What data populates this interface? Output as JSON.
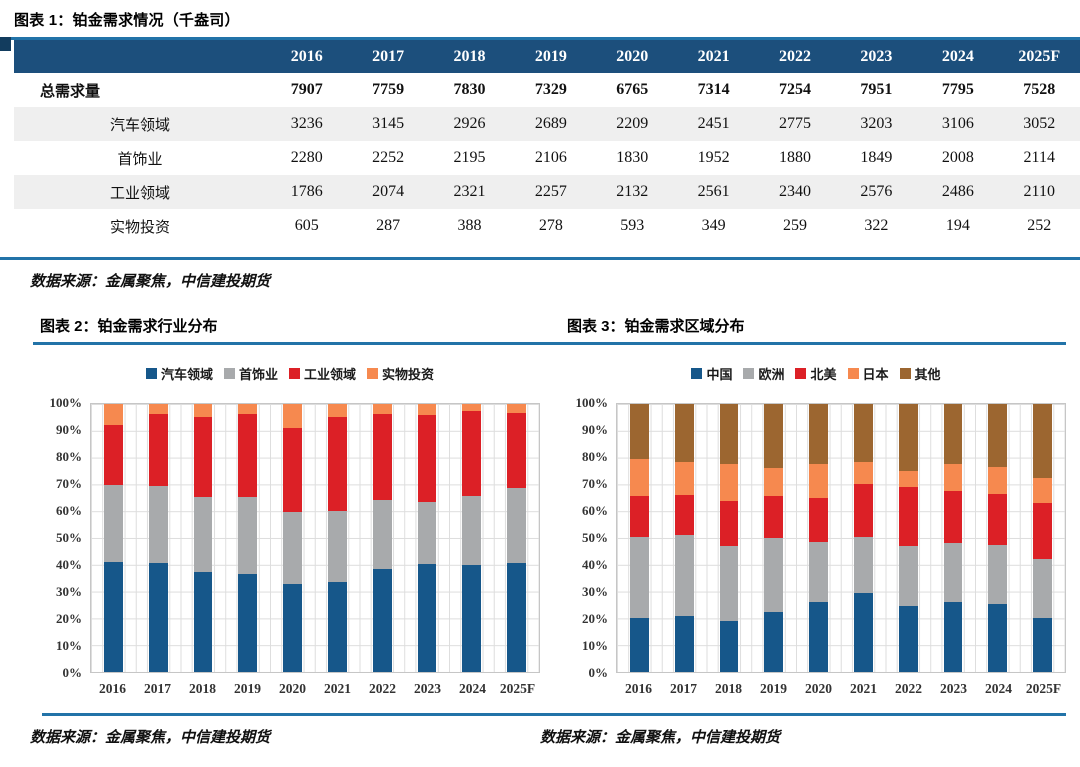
{
  "figure1": {
    "title": "图表 1：铂金需求情况（千盎司）",
    "source": "数据来源：金属聚焦，中信建投期货",
    "columns": [
      "2016",
      "2017",
      "2018",
      "2019",
      "2020",
      "2021",
      "2022",
      "2023",
      "2024",
      "2025F"
    ],
    "rows": [
      {
        "label": "总需求量",
        "bold": true,
        "shaded": false,
        "values": [
          7907,
          7759,
          7830,
          7329,
          6765,
          7314,
          7254,
          7951,
          7795,
          7528
        ]
      },
      {
        "label": "汽车领域",
        "bold": false,
        "shaded": true,
        "values": [
          3236,
          3145,
          2926,
          2689,
          2209,
          2451,
          2775,
          3203,
          3106,
          3052
        ]
      },
      {
        "label": "首饰业",
        "bold": false,
        "shaded": false,
        "values": [
          2280,
          2252,
          2195,
          2106,
          1830,
          1952,
          1880,
          1849,
          2008,
          2114
        ]
      },
      {
        "label": "工业领域",
        "bold": false,
        "shaded": true,
        "values": [
          1786,
          2074,
          2321,
          2257,
          2132,
          2561,
          2340,
          2576,
          2486,
          2110
        ]
      },
      {
        "label": "实物投资",
        "bold": false,
        "shaded": false,
        "values": [
          605,
          287,
          388,
          278,
          593,
          349,
          259,
          322,
          194,
          252
        ]
      }
    ]
  },
  "figure2": {
    "title": "图表 2：铂金需求行业分布",
    "source": "数据来源：金属聚焦，中信建投期货"
  },
  "figure3": {
    "title": "图表 3：铂金需求区域分布",
    "source": "数据来源：金属聚焦，中信建投期货"
  },
  "colors": {
    "table_header": "#1C4F7C",
    "rule_blue": "#2273A8",
    "zebra_row": "#EFEFEF",
    "blue": "#16578A",
    "gray": "#A8AAAC",
    "red": "#DC2026",
    "orange": "#F6894F",
    "brown": "#9C6630"
  },
  "chart_data": [
    {
      "type": "bar",
      "stacked": "100%",
      "title": "图表 2：铂金需求行业分布",
      "categories": [
        "2016",
        "2017",
        "2018",
        "2019",
        "2020",
        "2021",
        "2022",
        "2023",
        "2024",
        "2025F"
      ],
      "series": [
        {
          "name": "汽车领域",
          "color": "#16578A",
          "values": [
            3236,
            3145,
            2926,
            2689,
            2209,
            2451,
            2775,
            3203,
            3106,
            3052
          ]
        },
        {
          "name": "首饰业",
          "color": "#A8AAAC",
          "values": [
            2280,
            2252,
            2195,
            2106,
            1830,
            1952,
            1880,
            1849,
            2008,
            2114
          ]
        },
        {
          "name": "工业领域",
          "color": "#DC2026",
          "values": [
            1786,
            2074,
            2321,
            2257,
            2132,
            2561,
            2340,
            2576,
            2486,
            2110
          ]
        },
        {
          "name": "实物投资",
          "color": "#F6894F",
          "values": [
            605,
            287,
            388,
            278,
            593,
            349,
            259,
            322,
            194,
            252
          ]
        }
      ],
      "values_unit": "千盎司（图中按占比 100% 堆叠显示）",
      "yticks": [
        "0%",
        "10%",
        "20%",
        "30%",
        "40%",
        "50%",
        "60%",
        "70%",
        "80%",
        "90%",
        "100%"
      ],
      "ylim": [
        "0%",
        "100%"
      ],
      "grid": true,
      "legend_position": "top",
      "source": "数据来源：金属聚焦，中信建投期货"
    },
    {
      "type": "bar",
      "stacked": "100%",
      "title": "图表 3：铂金需求区域分布",
      "categories": [
        "2016",
        "2017",
        "2018",
        "2019",
        "2020",
        "2021",
        "2022",
        "2023",
        "2024",
        "2025F"
      ],
      "series": [
        {
          "name": "中国",
          "color": "#16578A",
          "values": [
            20,
            21,
            19,
            22.5,
            26,
            29.5,
            24.5,
            26,
            25.5,
            20
          ]
        },
        {
          "name": "欧洲",
          "color": "#A8AAAC",
          "values": [
            30.5,
            30,
            28,
            27.5,
            22.5,
            21,
            22.5,
            22,
            22,
            22
          ]
        },
        {
          "name": "北美",
          "color": "#DC2026",
          "values": [
            15,
            15,
            17,
            15.5,
            16.5,
            19.5,
            22,
            19.5,
            19,
            21
          ]
        },
        {
          "name": "日本",
          "color": "#F6894F",
          "values": [
            14,
            12.5,
            13.5,
            10.5,
            12.5,
            8.5,
            6,
            10,
            10,
            9.5
          ]
        },
        {
          "name": "其他",
          "color": "#9C6630",
          "values": [
            20.5,
            21.5,
            22.5,
            24,
            22.5,
            21.5,
            25,
            22.5,
            23.5,
            27.5
          ]
        }
      ],
      "values_unit": "percent",
      "yticks": [
        "0%",
        "10%",
        "20%",
        "30%",
        "40%",
        "50%",
        "60%",
        "70%",
        "80%",
        "90%",
        "100%"
      ],
      "ylim": [
        "0%",
        "100%"
      ],
      "grid": true,
      "legend_position": "top",
      "source": "数据来源：金属聚焦，中信建投期货"
    }
  ]
}
